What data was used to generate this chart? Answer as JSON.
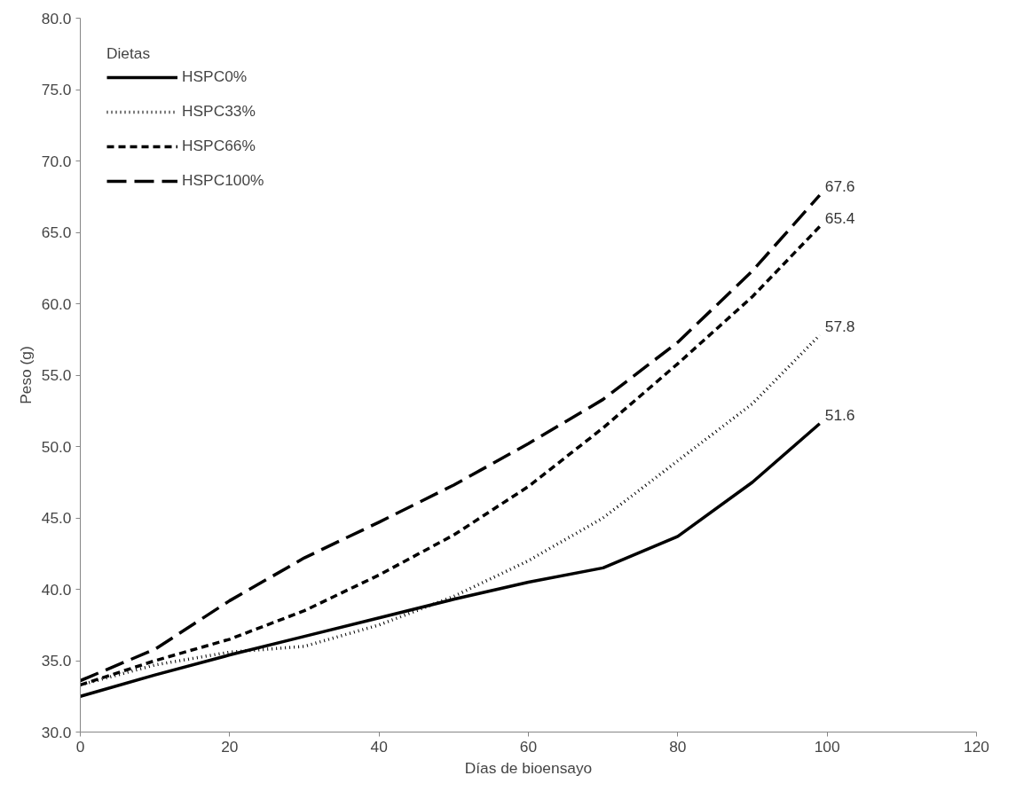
{
  "chart_data": {
    "type": "line",
    "xlabel": "Días de bioensayo",
    "ylabel": "Peso (g)",
    "legend_title": "Dietas",
    "legend": "top left",
    "grid": false,
    "marker": "none",
    "xlim": [
      0,
      120
    ],
    "xticks": [
      0,
      20,
      40,
      60,
      80,
      100,
      120
    ],
    "ylim": [
      30,
      80
    ],
    "yticks": [
      {
        "value": 30,
        "label": "30.0"
      },
      {
        "value": 35,
        "label": "35.0"
      },
      {
        "value": 40,
        "label": "40.0"
      },
      {
        "value": 45,
        "label": "45.0"
      },
      {
        "value": 50,
        "label": "50.0"
      },
      {
        "value": 55,
        "label": "55.0"
      },
      {
        "value": 60,
        "label": "60.0"
      },
      {
        "value": 65,
        "label": "65.0"
      },
      {
        "value": 70,
        "label": "70.0"
      },
      {
        "value": 75,
        "label": "75.0"
      },
      {
        "value": 80,
        "label": "80.0"
      }
    ],
    "x": [
      0,
      10,
      20,
      30,
      40,
      50,
      60,
      70,
      80,
      90,
      99
    ],
    "series": [
      {
        "name": "HSPC0%",
        "color": "#000000",
        "line_style": "solid",
        "values": [
          32.5,
          34.0,
          35.4,
          36.7,
          38.0,
          39.3,
          40.5,
          41.5,
          43.7,
          47.5,
          51.6
        ],
        "value_labels": [
          null,
          null,
          null,
          null,
          null,
          null,
          null,
          null,
          null,
          null,
          "51.6"
        ]
      },
      {
        "name": "HSPC33%",
        "color": "#000000",
        "line_style": "dotted",
        "values": [
          33.3,
          34.7,
          35.6,
          36.0,
          37.5,
          39.5,
          42.0,
          45.0,
          49.0,
          53.0,
          57.8
        ],
        "value_labels": [
          null,
          null,
          null,
          null,
          null,
          null,
          null,
          null,
          null,
          null,
          "57.8"
        ]
      },
      {
        "name": "HSPC66%",
        "color": "#000000",
        "line_style": "dashed",
        "values": [
          33.3,
          35.0,
          36.5,
          38.5,
          41.0,
          43.8,
          47.2,
          51.3,
          55.8,
          60.5,
          65.4
        ],
        "value_labels": [
          null,
          null,
          null,
          null,
          null,
          null,
          null,
          null,
          null,
          null,
          "65.4"
        ]
      },
      {
        "name": "HSPC100%",
        "color": "#000000",
        "line_style": "longdash",
        "values": [
          33.6,
          35.8,
          39.2,
          42.2,
          44.7,
          47.3,
          50.2,
          53.3,
          57.3,
          62.3,
          67.6
        ],
        "value_labels": [
          null,
          null,
          null,
          null,
          null,
          null,
          null,
          null,
          null,
          null,
          "67.6"
        ]
      }
    ]
  }
}
